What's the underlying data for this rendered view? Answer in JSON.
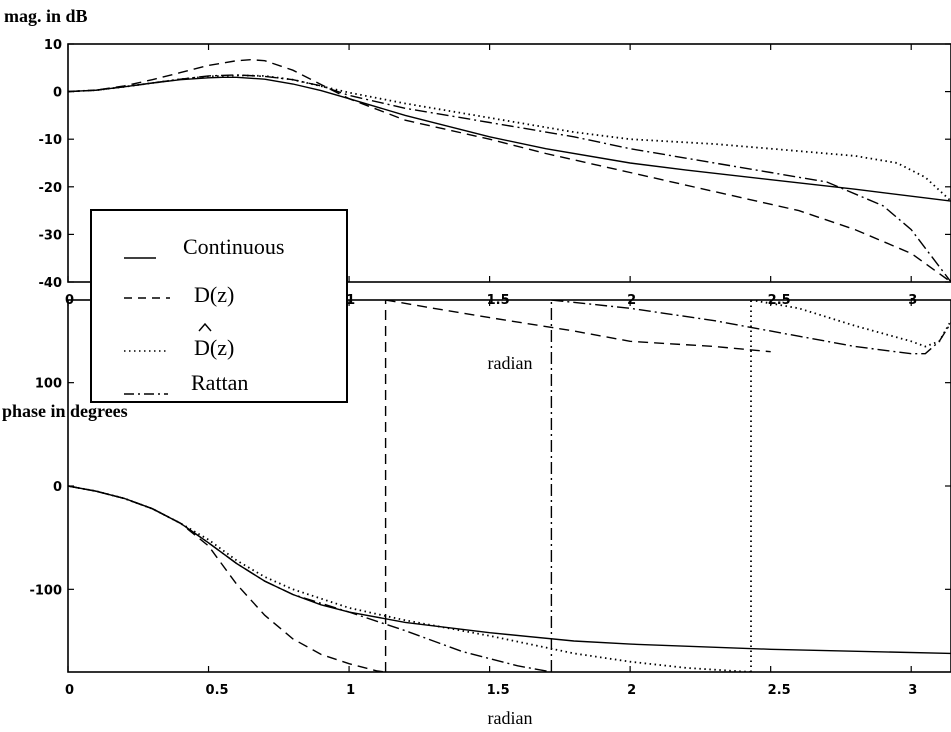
{
  "chart_data": [
    {
      "type": "line",
      "ylabel": "mag. in dB",
      "xlabel": "radian",
      "xlim": [
        0,
        3.1416
      ],
      "ylim": [
        -40,
        10
      ],
      "xticks": [
        "0",
        "0.5",
        "1",
        "1.5",
        "2",
        "2.5",
        "3"
      ],
      "yticks": [
        "10",
        "0",
        "-10",
        "-20",
        "-30",
        "-40"
      ],
      "legend": {
        "placement": "lower-left",
        "entries": [
          "Continuous",
          "D(z)",
          "D(z)",
          "Rattan"
        ],
        "hat_on_entry": 2
      },
      "series": [
        {
          "name": "Continuous",
          "style": "solid",
          "x": [
            0,
            0.1,
            0.2,
            0.3,
            0.4,
            0.5,
            0.55,
            0.6,
            0.7,
            0.8,
            0.9,
            1.0,
            1.2,
            1.4,
            1.5,
            1.7,
            2.0,
            2.2,
            2.5,
            2.8,
            3.1416
          ],
          "y": [
            0,
            0.3,
            1.0,
            1.8,
            2.5,
            2.9,
            3.0,
            3.0,
            2.6,
            1.6,
            0.2,
            -1.5,
            -5.0,
            -8.0,
            -9.5,
            -12.0,
            -15.0,
            -16.5,
            -18.5,
            -20.5,
            -23.0
          ]
        },
        {
          "name": "D(z)",
          "style": "dashed",
          "x": [
            0,
            0.1,
            0.2,
            0.3,
            0.4,
            0.5,
            0.6,
            0.65,
            0.7,
            0.8,
            0.9,
            1.0,
            1.2,
            1.5,
            1.7,
            2.0,
            2.3,
            2.6,
            2.8,
            3.0,
            3.1416
          ],
          "y": [
            0,
            0.3,
            1.2,
            2.5,
            4.0,
            5.5,
            6.5,
            6.7,
            6.5,
            4.5,
            1.5,
            -1.5,
            -6.0,
            -10.0,
            -13.0,
            -17.0,
            -21.0,
            -25.0,
            -29.0,
            -34.0,
            -40.0
          ]
        },
        {
          "name": "D(z) hat",
          "style": "dotted",
          "x": [
            0,
            0.1,
            0.2,
            0.3,
            0.4,
            0.5,
            0.6,
            0.7,
            0.8,
            1.0,
            1.2,
            1.5,
            1.8,
            2.0,
            2.3,
            2.5,
            2.8,
            2.95,
            3.05,
            3.1416
          ],
          "y": [
            0,
            0.3,
            1.0,
            1.8,
            2.6,
            3.2,
            3.4,
            3.3,
            2.5,
            -0.2,
            -2.5,
            -5.5,
            -8.5,
            -10.0,
            -11.0,
            -12.0,
            -13.5,
            -15.0,
            -18.0,
            -23.0
          ]
        },
        {
          "name": "Rattan",
          "style": "dashdot",
          "x": [
            0,
            0.1,
            0.2,
            0.3,
            0.4,
            0.5,
            0.6,
            0.7,
            0.8,
            0.9,
            1.0,
            1.2,
            1.5,
            1.8,
            2.0,
            2.3,
            2.5,
            2.7,
            2.9,
            3.0,
            3.1416
          ],
          "y": [
            0,
            0.3,
            1.0,
            1.8,
            2.6,
            3.3,
            3.5,
            3.2,
            2.5,
            1.2,
            -0.8,
            -3.5,
            -6.5,
            -9.5,
            -12.0,
            -15.0,
            -17.0,
            -19.0,
            -24.0,
            -29.0,
            -40.0
          ]
        }
      ]
    },
    {
      "type": "line",
      "ylabel": "phase in degrees",
      "xlabel": "radian",
      "xlim": [
        0,
        3.1416
      ],
      "ylim": [
        -180,
        180
      ],
      "xticks": [
        "0",
        "0.5",
        "1",
        "1.5",
        "2",
        "2.5",
        "3"
      ],
      "yticks": [
        "100",
        "0",
        "-100"
      ],
      "series": [
        {
          "name": "Continuous",
          "style": "solid",
          "segments": [
            {
              "x": [
                0,
                0.1,
                0.2,
                0.3,
                0.4,
                0.5,
                0.6,
                0.7,
                0.8,
                0.9,
                1.0,
                1.2,
                1.5,
                1.8,
                2.0,
                2.5,
                3.1416
              ],
              "y": [
                0,
                -5,
                -12,
                -22,
                -36,
                -55,
                -75,
                -92,
                -105,
                -115,
                -122,
                -132,
                -142,
                -150,
                -153,
                -158,
                -162
              ]
            }
          ]
        },
        {
          "name": "D(z)",
          "style": "dashed",
          "segments": [
            {
              "x": [
                0,
                0.1,
                0.2,
                0.3,
                0.4,
                0.5,
                0.6,
                0.7,
                0.8,
                0.9,
                1.0,
                1.1,
                1.13
              ],
              "y": [
                0,
                -5,
                -12,
                -22,
                -36,
                -58,
                -95,
                -125,
                -148,
                -163,
                -172,
                -179,
                -180
              ]
            },
            {
              "x": [
                1.13,
                1.13
              ],
              "y": [
                -180,
                180
              ]
            },
            {
              "x": [
                1.13,
                1.3,
                1.5,
                1.8,
                2.0,
                2.3,
                2.5
              ],
              "y": [
                180,
                172,
                163,
                150,
                140,
                135,
                130
              ]
            }
          ]
        },
        {
          "name": "D(z) hat",
          "style": "dotted",
          "segments": [
            {
              "x": [
                0,
                0.1,
                0.2,
                0.3,
                0.4,
                0.5,
                0.6,
                0.7,
                0.8,
                1.0,
                1.2,
                1.5,
                1.8,
                2.0,
                2.2,
                2.43
              ],
              "y": [
                0,
                -5,
                -12,
                -22,
                -36,
                -52,
                -72,
                -88,
                -100,
                -118,
                -130,
                -145,
                -162,
                -170,
                -176,
                -180
              ]
            },
            {
              "x": [
                2.43,
                2.43
              ],
              "y": [
                -180,
                180
              ]
            },
            {
              "x": [
                2.43,
                2.6,
                2.8,
                3.0,
                3.05,
                3.1,
                3.1416
              ],
              "y": [
                180,
                172,
                155,
                140,
                135,
                140,
                160
              ]
            }
          ]
        },
        {
          "name": "Rattan",
          "style": "dashdot",
          "segments": [
            {
              "x": [
                0,
                0.1,
                0.2,
                0.3,
                0.4,
                0.5,
                0.6,
                0.7,
                0.8,
                1.0,
                1.2,
                1.4,
                1.6,
                1.72
              ],
              "y": [
                0,
                -5,
                -12,
                -22,
                -36,
                -55,
                -75,
                -92,
                -105,
                -122,
                -140,
                -160,
                -174,
                -180
              ]
            },
            {
              "x": [
                1.72,
                1.72
              ],
              "y": [
                -180,
                180
              ]
            },
            {
              "x": [
                1.72,
                2.0,
                2.3,
                2.6,
                2.8,
                3.0,
                3.05,
                3.1,
                3.1416
              ],
              "y": [
                180,
                172,
                160,
                145,
                135,
                128,
                128,
                140,
                158
              ]
            }
          ]
        }
      ]
    }
  ]
}
